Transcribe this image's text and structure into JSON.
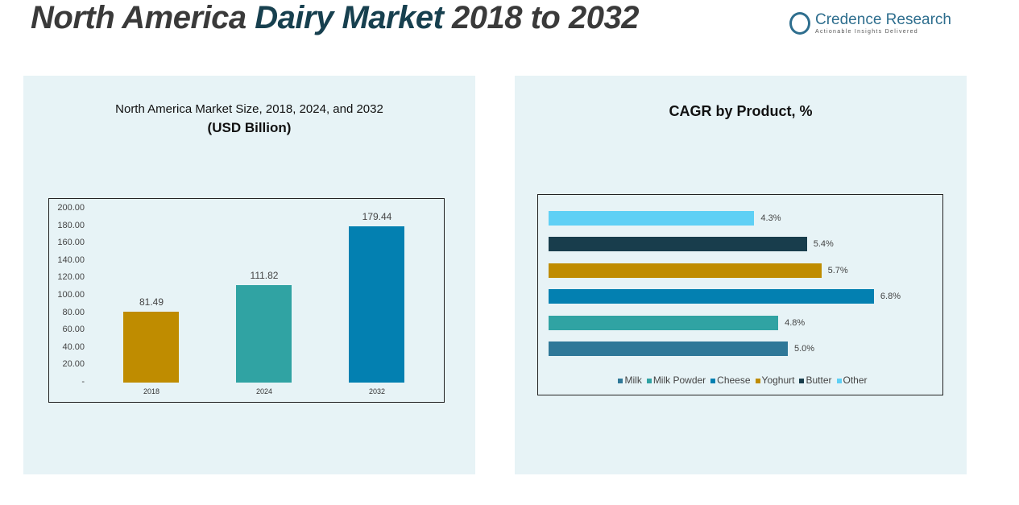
{
  "header": {
    "title_a": "North America ",
    "title_b": "Dairy Market",
    "title_c": " 2018 to 2032",
    "logo_name": "Credence Research",
    "logo_tagline": "Actionable Insights Delivered"
  },
  "chart_data": [
    {
      "type": "bar",
      "title": "North America Market Size, 2018, 2024, and 2032",
      "subtitle": "(USD Billion)",
      "categories": [
        "2018",
        "2024",
        "2032"
      ],
      "values": [
        81.49,
        111.82,
        179.44
      ],
      "value_labels": [
        "81.49",
        "111.82",
        "179.44"
      ],
      "ylim": [
        0,
        200
      ],
      "yticks": [
        "200.00",
        "180.00",
        "160.00",
        "140.00",
        "120.00",
        "100.00",
        "80.00",
        "60.00",
        "40.00",
        "20.00",
        "-"
      ],
      "colors": [
        "#bf8c00",
        "#30a3a3",
        "#0380b1"
      ]
    },
    {
      "type": "bar",
      "orientation": "horizontal",
      "title": "CAGR by Product, %",
      "categories": [
        "Other",
        "Butter",
        "Yoghurt",
        "Cheese",
        "Milk Powder",
        "Milk"
      ],
      "values": [
        4.3,
        5.4,
        5.7,
        6.8,
        4.8,
        5.0
      ],
      "value_labels": [
        "4.3%",
        "5.4%",
        "5.7%",
        "6.8%",
        "4.8%",
        "5.0%"
      ],
      "colors": [
        "#5fd0f5",
        "#183d4c",
        "#bf8c00",
        "#0380b1",
        "#30a3a3",
        "#2f7898"
      ],
      "legend": [
        "Milk",
        "Milk Powder",
        "Cheese",
        "Yoghurt",
        "Butter",
        "Other"
      ],
      "legend_colors": [
        "#2f7898",
        "#30a3a3",
        "#0380b1",
        "#bf8c00",
        "#183d4c",
        "#5fd0f5"
      ],
      "legend_position": "bottom"
    }
  ]
}
